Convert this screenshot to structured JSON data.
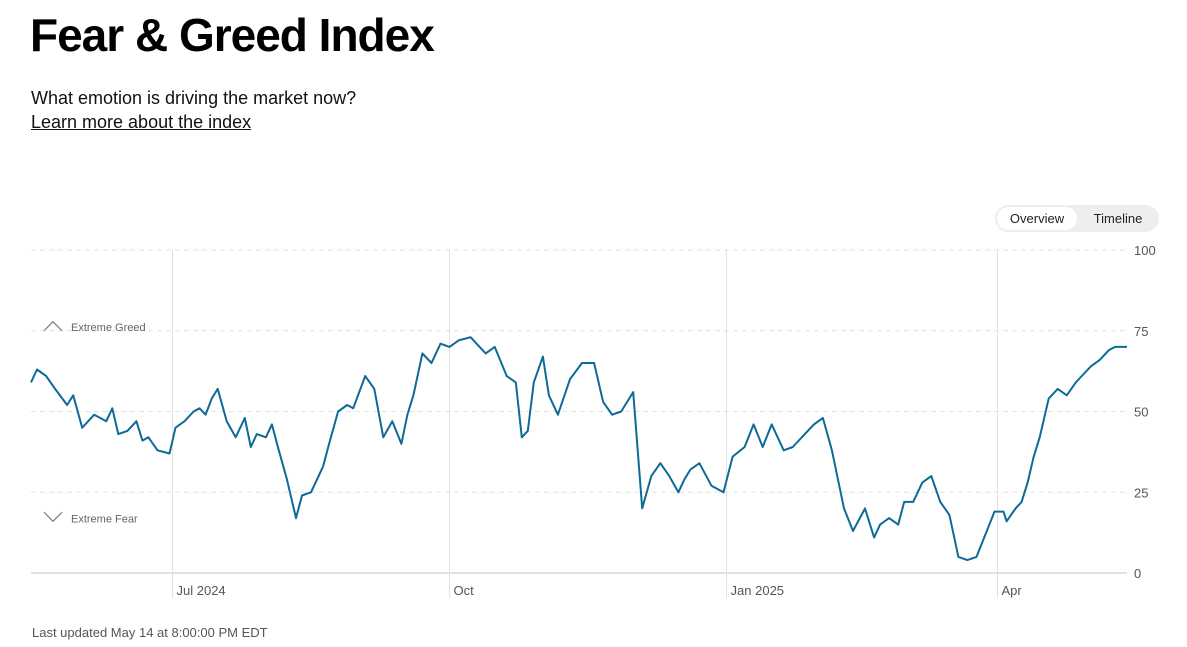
{
  "header": {
    "title": "Fear & Greed Index",
    "subtitle": "What emotion is driving the market now?",
    "learn_more": "Learn more about the index"
  },
  "view_toggle": {
    "options": [
      "Overview",
      "Timeline"
    ],
    "selected": "Overview"
  },
  "footer": {
    "last_updated": "Last updated May 14 at 8:00:00 PM EDT"
  },
  "colors": {
    "line": "#0e6a96",
    "grid": "#e2e2e2",
    "axis_text": "#555555",
    "marker": "#777777"
  },
  "chart_data": {
    "type": "line",
    "ylim": [
      0,
      100
    ],
    "yticks": [
      0,
      25,
      50,
      75,
      100
    ],
    "xlim": [
      "2024-05-15",
      "2025-05-14"
    ],
    "xticks": [
      {
        "date": "2024-07-01",
        "label": "Jul 2024"
      },
      {
        "date": "2024-10-01",
        "label": "Oct"
      },
      {
        "date": "2025-01-01",
        "label": "Jan 2025"
      },
      {
        "date": "2025-04-01",
        "label": "Apr"
      }
    ],
    "grid": true,
    "bands": [
      {
        "label": "Extreme Greed",
        "value": 75,
        "direction": "up"
      },
      {
        "label": "Extreme Fear",
        "value": 25,
        "direction": "down"
      }
    ],
    "series": [
      {
        "x": [
          "2024-05-15",
          "2024-05-17",
          "2024-05-20",
          "2024-05-23",
          "2024-05-27",
          "2024-05-29",
          "2024-06-01",
          "2024-06-05",
          "2024-06-09",
          "2024-06-11",
          "2024-06-13",
          "2024-06-16",
          "2024-06-19",
          "2024-06-21",
          "2024-06-23",
          "2024-06-26",
          "2024-06-30",
          "2024-07-02",
          "2024-07-05",
          "2024-07-08",
          "2024-07-10",
          "2024-07-12",
          "2024-07-14",
          "2024-07-16",
          "2024-07-19",
          "2024-07-22",
          "2024-07-25",
          "2024-07-27",
          "2024-07-29",
          "2024-08-01",
          "2024-08-03",
          "2024-08-05",
          "2024-08-08",
          "2024-08-11",
          "2024-08-13",
          "2024-08-16",
          "2024-08-20",
          "2024-08-22",
          "2024-08-25",
          "2024-08-28",
          "2024-08-30",
          "2024-09-03",
          "2024-09-06",
          "2024-09-09",
          "2024-09-12",
          "2024-09-15",
          "2024-09-17",
          "2024-09-19",
          "2024-09-22",
          "2024-09-25",
          "2024-09-28",
          "2024-10-01",
          "2024-10-04",
          "2024-10-08",
          "2024-10-11",
          "2024-10-13",
          "2024-10-16",
          "2024-10-20",
          "2024-10-23",
          "2024-10-25",
          "2024-10-27",
          "2024-10-29",
          "2024-11-01",
          "2024-11-03",
          "2024-11-06",
          "2024-11-10",
          "2024-11-14",
          "2024-11-18",
          "2024-11-21",
          "2024-11-24",
          "2024-11-27",
          "2024-12-01",
          "2024-12-04",
          "2024-12-07",
          "2024-12-10",
          "2024-12-13",
          "2024-12-16",
          "2024-12-18",
          "2024-12-20",
          "2024-12-23",
          "2024-12-27",
          "2024-12-31",
          "2025-01-03",
          "2025-01-07",
          "2025-01-10",
          "2025-01-13",
          "2025-01-16",
          "2025-01-20",
          "2025-01-23",
          "2025-01-27",
          "2025-01-30",
          "2025-02-02",
          "2025-02-05",
          "2025-02-09",
          "2025-02-12",
          "2025-02-16",
          "2025-02-19",
          "2025-02-21",
          "2025-02-24",
          "2025-02-27",
          "2025-03-01",
          "2025-03-04",
          "2025-03-07",
          "2025-03-10",
          "2025-03-13",
          "2025-03-16",
          "2025-03-19",
          "2025-03-22",
          "2025-03-25",
          "2025-03-28",
          "2025-03-31",
          "2025-04-03",
          "2025-04-04",
          "2025-04-07",
          "2025-04-09",
          "2025-04-11",
          "2025-04-13",
          "2025-04-15",
          "2025-04-18",
          "2025-04-21",
          "2025-04-24",
          "2025-04-27",
          "2025-04-29",
          "2025-05-02",
          "2025-05-05",
          "2025-05-08",
          "2025-05-10",
          "2025-05-12",
          "2025-05-14"
        ],
        "y": [
          59,
          63,
          61,
          57,
          52,
          55,
          45,
          49,
          47,
          51,
          43,
          44,
          47,
          41,
          42,
          38,
          37,
          45,
          47,
          50,
          51,
          49,
          54,
          57,
          47,
          42,
          48,
          39,
          43,
          42,
          46,
          39,
          29,
          17,
          24,
          25,
          33,
          40,
          50,
          52,
          51,
          61,
          57,
          42,
          47,
          40,
          49,
          55,
          68,
          65,
          71,
          70,
          72,
          73,
          70,
          68,
          70,
          61,
          59,
          42,
          44,
          59,
          67,
          55,
          49,
          60,
          65,
          65,
          53,
          49,
          50,
          56,
          20,
          30,
          34,
          30,
          25,
          29,
          32,
          34,
          27,
          25,
          36,
          39,
          46,
          39,
          46,
          38,
          39,
          43,
          46,
          48,
          38,
          20,
          13,
          20,
          11,
          15,
          17,
          15,
          22,
          22,
          28,
          30,
          22,
          18,
          5,
          4,
          5,
          12,
          19,
          19,
          16,
          20,
          22,
          28,
          36,
          42,
          54,
          57,
          55,
          59,
          61,
          64,
          66,
          69,
          70,
          70,
          70
        ],
        "color": "#0e6a96"
      }
    ]
  }
}
